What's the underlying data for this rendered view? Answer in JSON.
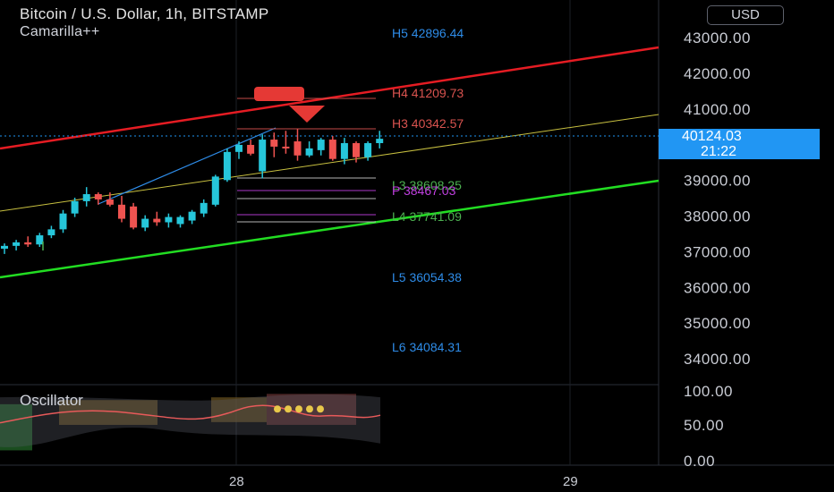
{
  "header": {
    "title": "Bitcoin / U.S. Dollar, 1h, BITSTAMP",
    "indicator": "Camarilla++",
    "currency": "USD"
  },
  "price_tag": {
    "value": "40124.03",
    "countdown": "21:22"
  },
  "oscillator": {
    "label": "Oscillator"
  },
  "colors": {
    "bull": "#26c6da",
    "bear": "#ef5350",
    "upper_channel": "#e51c23",
    "lower_channel": "#22dd22",
    "mid_channel": "#c8c040",
    "pivot": "#c040e0",
    "level_blue": "#2e8ce8",
    "level_red": "#d9534f",
    "level_green": "#4caf50"
  },
  "chart_data": {
    "type": "candlestick",
    "title": "Bitcoin / U.S. Dollar, 1h, BITSTAMP",
    "y_ticks": [
      "43000.00",
      "42000.00",
      "41000.00",
      "40000.00",
      "39000.00",
      "38000.00",
      "37000.00",
      "36000.00",
      "35000.00",
      "34000.00"
    ],
    "ylim": [
      33200,
      43800
    ],
    "x_ticks": [
      "28",
      "29"
    ],
    "levels": [
      {
        "label": "H5 42896.44",
        "value": 42896.44,
        "color": "#2e8ce8"
      },
      {
        "label": "H4 41209.73",
        "value": 41209.73,
        "color": "#d9534f"
      },
      {
        "label": "H3 40342.57",
        "value": 40342.57,
        "color": "#d9534f"
      },
      {
        "label": "L3 38608.25",
        "value": 38608.25,
        "color": "#4caf50"
      },
      {
        "label": "P 38467.03",
        "value": 38467.03,
        "color": "#c040e0"
      },
      {
        "label": "L4 37741.09",
        "value": 37741.09,
        "color": "#4caf50"
      },
      {
        "label": "L5 36054.38",
        "value": 36054.38,
        "color": "#2e8ce8"
      },
      {
        "label": "L6 34084.31",
        "value": 34084.31,
        "color": "#2e8ce8"
      }
    ],
    "candles": [
      {
        "o": 37000,
        "h": 37150,
        "l": 36850,
        "c": 37080
      },
      {
        "o": 37080,
        "h": 37250,
        "l": 36950,
        "c": 37180
      },
      {
        "o": 37180,
        "h": 37350,
        "l": 37050,
        "c": 37120
      },
      {
        "o": 37120,
        "h": 37450,
        "l": 37050,
        "c": 37380
      },
      {
        "o": 37380,
        "h": 37650,
        "l": 37300,
        "c": 37550
      },
      {
        "o": 37550,
        "h": 38100,
        "l": 37450,
        "c": 38000
      },
      {
        "o": 38000,
        "h": 38450,
        "l": 37900,
        "c": 38350
      },
      {
        "o": 38350,
        "h": 38750,
        "l": 38200,
        "c": 38550
      },
      {
        "o": 38550,
        "h": 38600,
        "l": 38250,
        "c": 38400
      },
      {
        "o": 38400,
        "h": 38600,
        "l": 38200,
        "c": 38250
      },
      {
        "o": 38250,
        "h": 38500,
        "l": 37750,
        "c": 37850
      },
      {
        "o": 38200,
        "h": 38300,
        "l": 37550,
        "c": 37600
      },
      {
        "o": 37600,
        "h": 37950,
        "l": 37500,
        "c": 37850
      },
      {
        "o": 37850,
        "h": 38050,
        "l": 37650,
        "c": 37750
      },
      {
        "o": 37750,
        "h": 38000,
        "l": 37600,
        "c": 37900
      },
      {
        "o": 37700,
        "h": 37950,
        "l": 37600,
        "c": 37900
      },
      {
        "o": 37800,
        "h": 38100,
        "l": 37700,
        "c": 38050
      },
      {
        "o": 38000,
        "h": 38400,
        "l": 37900,
        "c": 38300
      },
      {
        "o": 38250,
        "h": 39100,
        "l": 38200,
        "c": 39050
      },
      {
        "o": 38950,
        "h": 39850,
        "l": 38900,
        "c": 39750
      },
      {
        "o": 39750,
        "h": 40050,
        "l": 39550,
        "c": 39950
      },
      {
        "o": 39950,
        "h": 40100,
        "l": 39650,
        "c": 39700
      },
      {
        "o": 39200,
        "h": 40250,
        "l": 39000,
        "c": 40100
      },
      {
        "o": 40100,
        "h": 40300,
        "l": 39600,
        "c": 39900
      },
      {
        "o": 39900,
        "h": 40350,
        "l": 39700,
        "c": 39850
      },
      {
        "o": 40050,
        "h": 40400,
        "l": 39500,
        "c": 39650
      },
      {
        "o": 39650,
        "h": 40050,
        "l": 39600,
        "c": 39850
      },
      {
        "o": 39800,
        "h": 40150,
        "l": 39650,
        "c": 40100
      },
      {
        "o": 40100,
        "h": 40200,
        "l": 39500,
        "c": 39550
      },
      {
        "o": 39550,
        "h": 40150,
        "l": 39400,
        "c": 40000
      },
      {
        "o": 40000,
        "h": 40050,
        "l": 39450,
        "c": 39600
      },
      {
        "o": 39600,
        "h": 40050,
        "l": 39500,
        "c": 40000
      },
      {
        "o": 40000,
        "h": 40350,
        "l": 39850,
        "c": 40124
      }
    ],
    "oscillator": {
      "label": "Oscillator",
      "y_ticks": [
        "100.00",
        "50.00",
        "0.00"
      ],
      "ylim": [
        0,
        100
      ]
    }
  }
}
